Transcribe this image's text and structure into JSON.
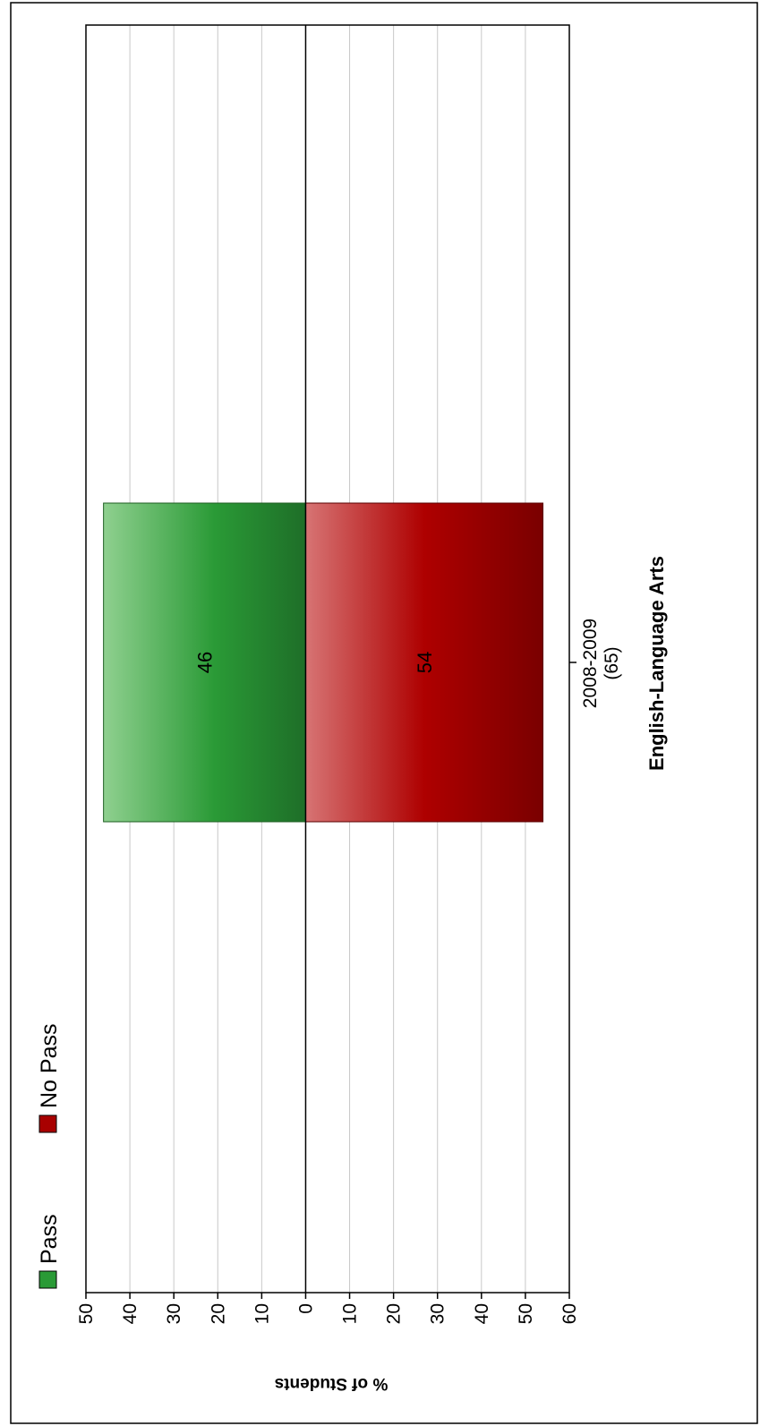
{
  "chart_data": {
    "type": "bar",
    "orientation": "rotated-stacked-diverging",
    "categories": [
      "2008-2009"
    ],
    "category_counts": [
      "(65)"
    ],
    "subject": "English-Language Arts",
    "series": [
      {
        "name": "Pass",
        "values": [
          46
        ],
        "color": "#2a9a36"
      },
      {
        "name": "No Pass",
        "values": [
          54
        ],
        "color": "#a80000"
      }
    ],
    "ylabel": "% of Students",
    "ticks": [
      "50",
      "40",
      "30",
      "20",
      "10",
      "0",
      "10",
      "20",
      "30",
      "40",
      "50",
      "60"
    ],
    "ylim": [
      -50,
      60
    ],
    "grid": true,
    "legend": [
      "Pass",
      "No Pass"
    ]
  }
}
